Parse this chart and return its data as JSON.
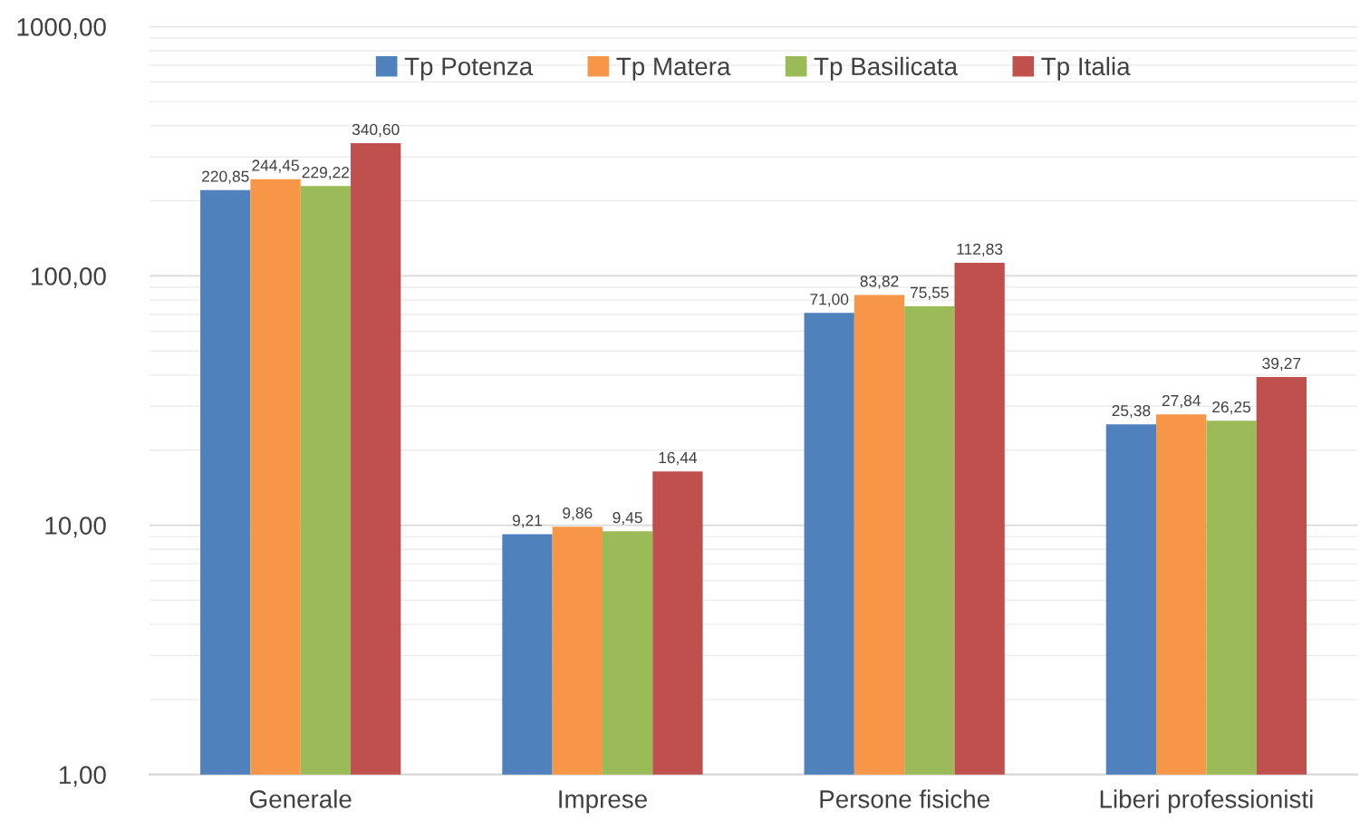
{
  "chart_data": {
    "type": "bar",
    "categories": [
      "Generale",
      "Imprese",
      "Persone fisiche",
      "Liberi professionisti"
    ],
    "series": [
      {
        "name": "Tp Potenza",
        "color": "#4f81bd",
        "values": [
          220.85,
          9.21,
          71.0,
          25.38
        ],
        "value_labels": [
          "220,85",
          "9,21",
          "71,00",
          "25,38"
        ]
      },
      {
        "name": "Tp Matera",
        "color": "#f79646",
        "values": [
          244.45,
          9.86,
          83.82,
          27.84
        ],
        "value_labels": [
          "244,45",
          "9,86",
          "83,82",
          "27,84"
        ]
      },
      {
        "name": "Tp Basilicata",
        "color": "#9bbb59",
        "values": [
          229.22,
          9.45,
          75.55,
          26.25
        ],
        "value_labels": [
          "229,22",
          "9,45",
          "75,55",
          "26,25"
        ]
      },
      {
        "name": "Tp Italia",
        "color": "#c0504d",
        "values": [
          340.6,
          16.44,
          112.83,
          39.27
        ],
        "value_labels": [
          "340,60",
          "16,44",
          "112,83",
          "39,27"
        ]
      }
    ],
    "log": "y",
    "ylim": [
      1,
      1000
    ],
    "yticks": [
      {
        "value": 1,
        "label": "1,00"
      },
      {
        "value": 10,
        "label": "10,00"
      },
      {
        "value": 100,
        "label": "100,00"
      },
      {
        "value": 1000,
        "label": "1000,00"
      }
    ],
    "grid": "y",
    "legend": "top"
  }
}
